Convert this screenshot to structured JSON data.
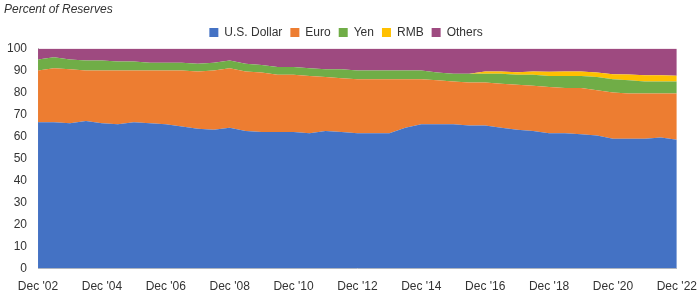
{
  "chart_data": {
    "type": "area",
    "ylabel": "Percent of Reserves",
    "categories": [
      "Dec '02",
      null,
      null,
      null,
      "Dec '04",
      null,
      null,
      null,
      "Dec '06",
      null,
      null,
      null,
      "Dec '08",
      null,
      null,
      null,
      "Dec '10",
      null,
      null,
      null,
      "Dec '12",
      null,
      null,
      null,
      "Dec '14",
      null,
      null,
      null,
      "Dec '16",
      null,
      null,
      null,
      "Dec '18",
      null,
      null,
      null,
      "Dec '20",
      null,
      null,
      null,
      "Dec '22"
    ],
    "series": [
      {
        "name": "U.S. Dollar",
        "color": "#4472c4",
        "values": [
          66.5,
          66.5,
          66,
          67,
          66,
          65.5,
          66.5,
          66,
          65.5,
          64.5,
          63.5,
          63,
          64,
          62.5,
          62,
          62,
          62,
          61.5,
          62.5,
          62,
          61.5,
          61.5,
          61.5,
          64,
          65.5,
          65.5,
          65.5,
          65,
          65,
          64,
          63,
          62.5,
          61.5,
          61.5,
          61,
          60.5,
          59,
          59,
          59,
          59.5,
          58.5
        ]
      },
      {
        "name": "Euro",
        "color": "#ed7d31",
        "values": [
          23.5,
          24.5,
          24.5,
          23,
          24,
          24.5,
          23.5,
          24,
          24.5,
          25.5,
          26,
          27,
          27,
          27,
          27,
          26,
          26,
          26,
          24.5,
          24.5,
          24.5,
          24.5,
          24.5,
          22,
          20.5,
          20,
          19.5,
          19.5,
          19.5,
          20,
          20.5,
          20.5,
          21,
          20.5,
          21,
          20.5,
          21,
          20.5,
          20.5,
          20,
          21
        ]
      },
      {
        "name": "Yen",
        "color": "#70ad47",
        "values": [
          5,
          5,
          4.5,
          4.5,
          4.5,
          4,
          4,
          3.5,
          3.5,
          3.5,
          3.5,
          3.5,
          3.5,
          3.5,
          3.5,
          3.5,
          3.5,
          3.5,
          3.5,
          4,
          4,
          4,
          4,
          4,
          4,
          3.5,
          3.5,
          4,
          4,
          4.5,
          4.5,
          5,
          5,
          5.5,
          5.5,
          6,
          6,
          6,
          5.5,
          5.5,
          5.5
        ]
      },
      {
        "name": "RMB",
        "color": "#ffc000",
        "values": [
          0,
          0,
          0,
          0,
          0,
          0,
          0,
          0,
          0,
          0,
          0,
          0,
          0,
          0,
          0,
          0,
          0,
          0,
          0,
          0,
          0,
          0,
          0,
          0,
          0,
          0,
          0,
          0,
          1,
          1,
          1.2,
          1.5,
          1.9,
          2,
          2,
          2.1,
          2.3,
          2.6,
          2.8,
          2.8,
          2.6
        ]
      },
      {
        "name": "Others",
        "color": "#9e4a80",
        "values": [
          5,
          4,
          5,
          5.5,
          5.5,
          6,
          6,
          6.5,
          6.5,
          6.5,
          7,
          6.5,
          5.5,
          7,
          7.5,
          8.5,
          8.5,
          9,
          9.5,
          9.5,
          10,
          10,
          10,
          10,
          10,
          11,
          11.5,
          11.5,
          10.5,
          10.5,
          10.8,
          10.5,
          10.6,
          10.5,
          10.5,
          10.9,
          11.7,
          11.9,
          12.2,
          12.2,
          12.4
        ]
      }
    ],
    "ylim": [
      0,
      100
    ],
    "yticks": [
      0,
      10,
      20,
      30,
      40,
      50,
      60,
      70,
      80,
      90,
      100
    ],
    "stacked": true,
    "grid": false,
    "legend": "top"
  }
}
